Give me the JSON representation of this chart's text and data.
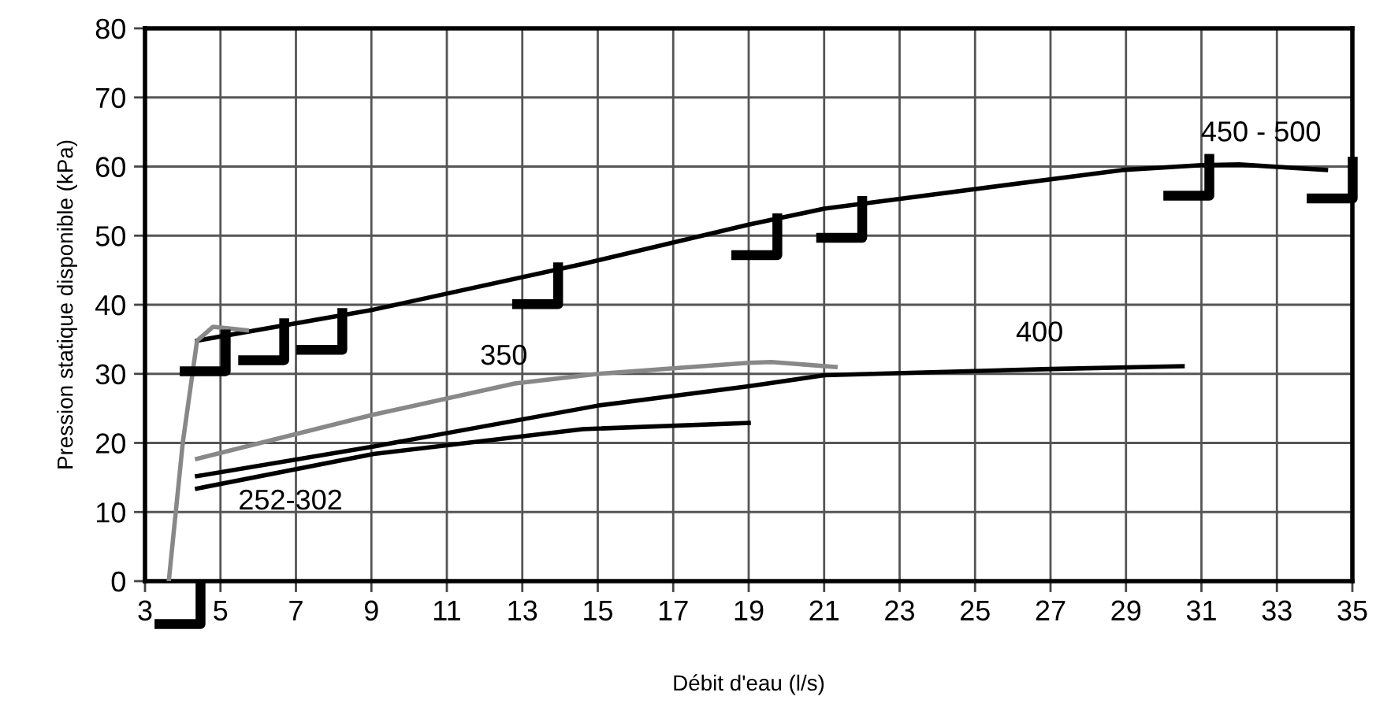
{
  "chart_data": {
    "type": "line",
    "xlabel": "Débit d'eau (l/s)",
    "ylabel": "Pression statique disponible (kPa)",
    "xlim": [
      3,
      35
    ],
    "ylim": [
      0,
      80
    ],
    "xticks": [
      3,
      5,
      7,
      9,
      11,
      13,
      15,
      17,
      19,
      21,
      23,
      25,
      27,
      29,
      31,
      33,
      35
    ],
    "yticks": [
      0,
      10,
      20,
      30,
      40,
      50,
      60,
      70,
      80
    ],
    "grid": true,
    "line_style": "solid",
    "series": [
      {
        "name": "450 - 500",
        "color": "#000000",
        "x": [
          4.38,
          9.06,
          14.6,
          19.0,
          21.0,
          28.9,
          31.0,
          32.0,
          34.3
        ],
        "values": [
          34.8,
          39.3,
          45.9,
          51.6,
          53.9,
          59.5,
          60.2,
          60.3,
          59.5
        ]
      },
      {
        "color": "#888888",
        "x": [
          3.63,
          4.0,
          4.38,
          4.8,
          5.7
        ],
        "values": [
          0,
          20,
          34.8,
          36.8,
          36.3
        ]
      },
      {
        "name": "350",
        "color": "#888888",
        "x": [
          4.38,
          9.06,
          12.8,
          15.0,
          19.0,
          19.6,
          21.3
        ],
        "values": [
          17.7,
          24.1,
          28.6,
          30.0,
          31.6,
          31.7,
          31.0
        ]
      },
      {
        "name": "400",
        "color": "#000000",
        "x": [
          4.38,
          9.06,
          15.0,
          19.0,
          21.0,
          27.0,
          30.5
        ],
        "values": [
          15.2,
          19.5,
          25.4,
          28.2,
          29.8,
          30.7,
          31.1
        ]
      },
      {
        "name": "252-302",
        "color": "#000000",
        "x": [
          4.38,
          9.06,
          14.6,
          19.0
        ],
        "values": [
          13.4,
          18.4,
          22.0,
          22.9
        ]
      },
      {
        "type": "scatter",
        "color": "#000000",
        "x": [
          4.53,
          6.08,
          7.62,
          13.34,
          19.15,
          21.4,
          30.6,
          34.4
        ],
        "values": [
          33.4,
          35.0,
          36.5,
          43.1,
          50.2,
          52.7,
          58.8,
          58.4
        ]
      }
    ]
  }
}
